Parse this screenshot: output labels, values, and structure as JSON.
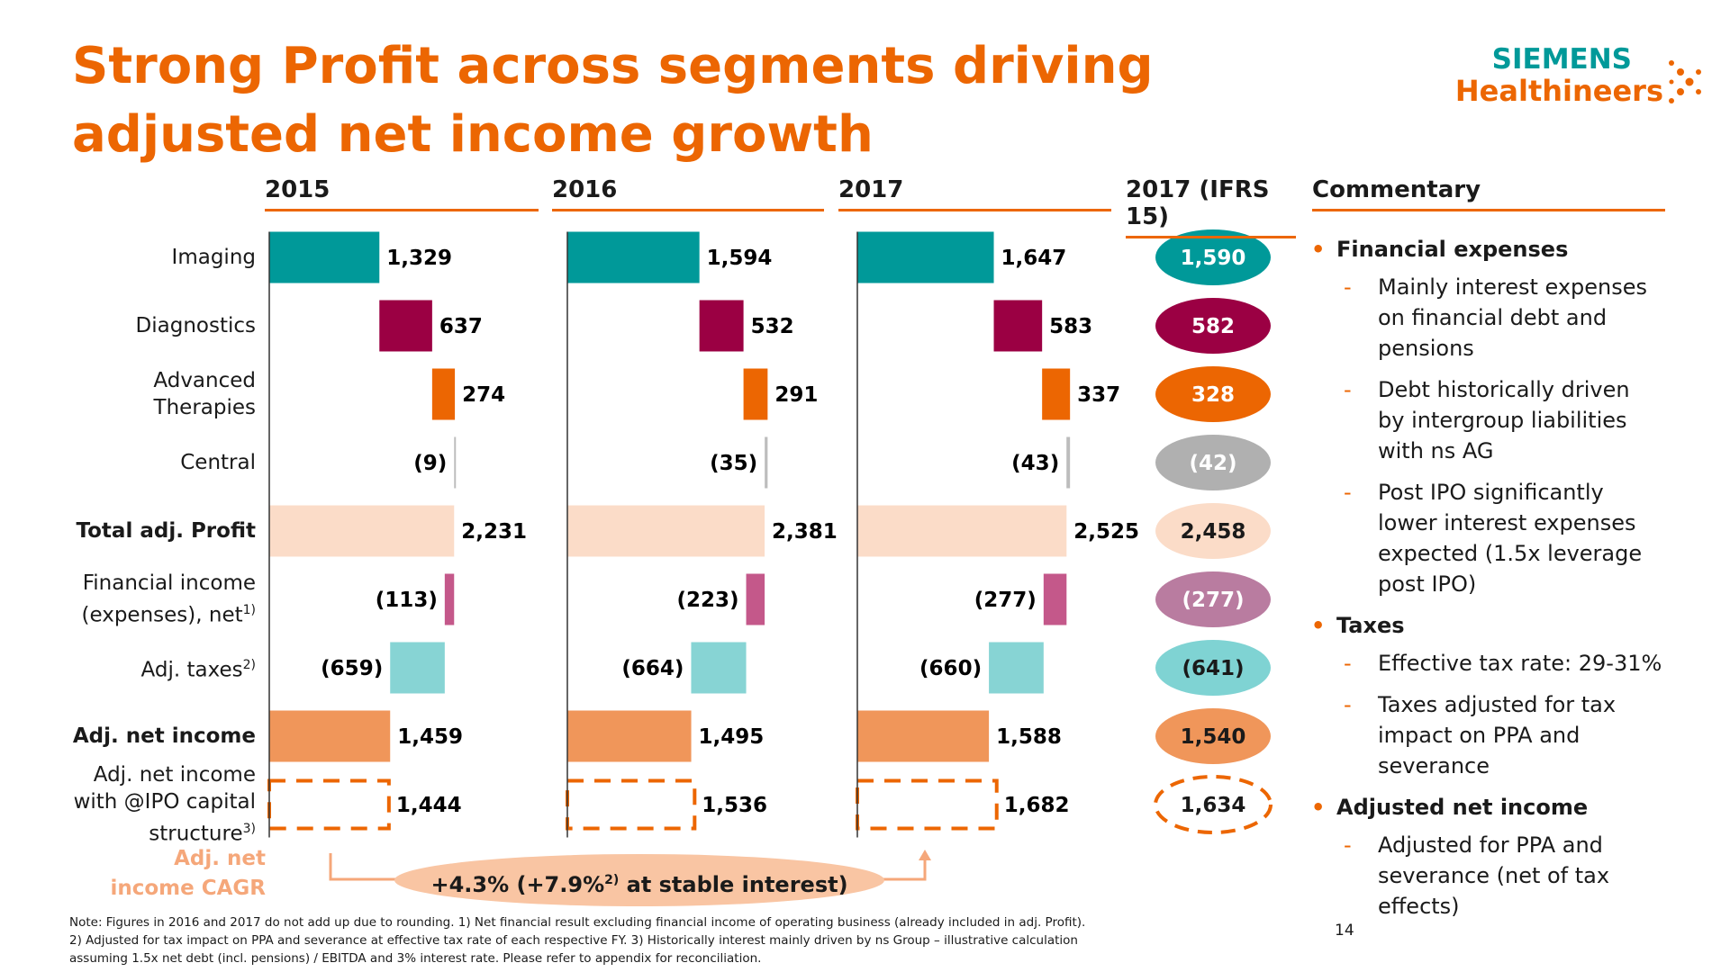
{
  "title": "Strong Profit across segments driving adjusted net income growth",
  "logo": {
    "brand": "SIEMENS",
    "product": "Healthineers"
  },
  "chart_data": [
    {
      "type": "waterfall",
      "title": "2015",
      "categories": [
        "Imaging",
        "Diagnostics",
        "Advanced Therapies",
        "Central",
        "Total adj. Profit",
        "Financial income (expenses), net",
        "Adj. taxes",
        "Adj. net income",
        "Adj. net income with @IPO capital structure"
      ],
      "category_footnotes": {
        "5": "1)",
        "6": "2)",
        "8": "3)"
      },
      "bold_categories": [
        4,
        7
      ],
      "values": [
        1329,
        637,
        274,
        -9,
        2231,
        -113,
        -659,
        1459,
        1444
      ],
      "value_labels": [
        "1,329",
        "637",
        "274",
        "(9)",
        "2,231",
        "(113)",
        "(659)",
        "1,459",
        "1,444"
      ],
      "totals": [
        4,
        7,
        8
      ],
      "dashed": [
        8
      ],
      "colors": [
        "#009999",
        "#9b0043",
        "#ec6602",
        "#bdbdbd",
        "#fbdcc8",
        "#c4588a",
        "#87d4d4",
        "#f0965a",
        "#ec6602"
      ],
      "xlim": [
        0,
        3000
      ]
    },
    {
      "type": "waterfall",
      "title": "2016",
      "values": [
        1594,
        532,
        291,
        -35,
        2381,
        -223,
        -664,
        1495,
        1536
      ],
      "value_labels": [
        "1,594",
        "532",
        "291",
        "(35)",
        "2,381",
        "(223)",
        "(664)",
        "1,495",
        "1,536"
      ],
      "totals": [
        4,
        7,
        8
      ],
      "dashed": [
        8
      ],
      "colors": [
        "#009999",
        "#9b0043",
        "#ec6602",
        "#bdbdbd",
        "#fbdcc8",
        "#c4588a",
        "#87d4d4",
        "#f0965a",
        "#ec6602"
      ],
      "xlim": [
        0,
        3000
      ]
    },
    {
      "type": "waterfall",
      "title": "2017",
      "values": [
        1647,
        583,
        337,
        -43,
        2525,
        -277,
        -660,
        1588,
        1682
      ],
      "value_labels": [
        "1,647",
        "583",
        "337",
        "(43)",
        "2,525",
        "(277)",
        "(660)",
        "1,588",
        "1,682"
      ],
      "totals": [
        4,
        7,
        8
      ],
      "dashed": [
        8
      ],
      "colors": [
        "#009999",
        "#9b0043",
        "#ec6602",
        "#bdbdbd",
        "#fbdcc8",
        "#c4588a",
        "#87d4d4",
        "#f0965a",
        "#ec6602"
      ],
      "xlim": [
        0,
        3000
      ]
    },
    {
      "type": "badges",
      "title": "2017 (IFRS 15)",
      "values": [
        1590,
        582,
        328,
        -42,
        2458,
        -277,
        -641,
        1540,
        1634
      ],
      "value_labels": [
        "1,590",
        "582",
        "328",
        "(42)",
        "2,458",
        "(277)",
        "(641)",
        "1,540",
        "1,634"
      ],
      "dashed": [
        8
      ],
      "colors": [
        "#009999",
        "#9b0043",
        "#ec6602",
        "#b0b0b0",
        "#fbdcc8",
        "#b97ca0",
        "#7fd3d3",
        "#f0965a",
        "#ffffff"
      ],
      "label_colors": [
        "#ffffff",
        "#ffffff",
        "#ffffff",
        "#ffffff",
        "#1a1a1a",
        "#ffffff",
        "#1a1a1a",
        "#1a1a1a",
        "#1a1a1a"
      ]
    }
  ],
  "cagr": {
    "label": "Adj. net income CAGR",
    "text": "+4.3% (+7.9%",
    "note": "2)",
    "text_end": " at stable interest)"
  },
  "commentary": {
    "title": "Commentary",
    "sections": [
      {
        "heading": "Financial expenses",
        "items": [
          "Mainly interest expenses on financial debt and pensions",
          "Debt historically driven by intergroup liabilities with ns AG",
          "Post IPO significantly lower interest expenses expected (1.5x leverage post IPO)"
        ]
      },
      {
        "heading": "Taxes",
        "items": [
          "Effective tax rate: 29-31%",
          "Taxes adjusted for tax impact on PPA and severance"
        ]
      },
      {
        "heading": "Adjusted net income",
        "items": [
          "Adjusted for PPA and severance (net of tax effects)"
        ]
      }
    ]
  },
  "notes": [
    "Note: Figures in 2016 and 2017 do not add up due to rounding. 1) Net financial result excluding financial income of operating business (already included in adj. Profit).",
    "2) Adjusted for tax impact on PPA and severance at effective tax rate of each respective FY. 3) Historically interest mainly driven by  ns Group – illustrative calculation",
    "assuming 1.5x net debt (incl. pensions) / EBITDA and 3% interest rate. Please refer to appendix for reconciliation."
  ],
  "page_number": "14"
}
